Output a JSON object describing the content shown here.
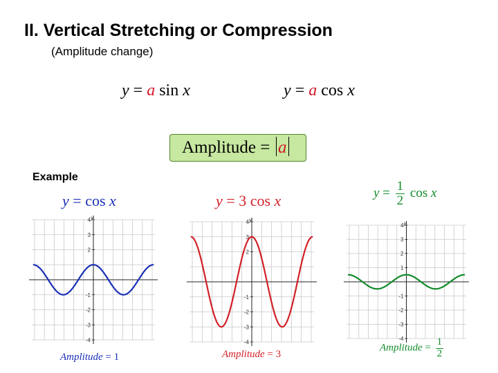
{
  "title": "II. Vertical Stretching or Compression",
  "subtitle": "(Amplitude change)",
  "formulas": {
    "sine": {
      "lhs": "y",
      "eq": "=",
      "a": "a",
      "fn": "sin",
      "x": "x"
    },
    "cosine": {
      "lhs": "y",
      "eq": "=",
      "a": "a",
      "fn": "cos",
      "x": "x"
    }
  },
  "amplitude_box": {
    "word": "Amplitude",
    "eq": "=",
    "a": "a"
  },
  "example_label": "Example",
  "colors": {
    "blue": "#1a2fb5",
    "red": "#d21f26",
    "green": "#128a2b",
    "grid": "#c8c8c8",
    "box_fill": "#c6e8a0"
  },
  "graphs": [
    {
      "title": {
        "lhs": "y",
        "eq": "=",
        "coef": "",
        "fn": "cos",
        "x": "x"
      },
      "amplitude": {
        "word": "Amplitude",
        "eq": "=",
        "value": "1"
      },
      "amp": 1,
      "color": "#1a2fb5",
      "axis_label": "y",
      "ticks": [
        "4",
        "3",
        "2",
        "-1",
        "-2",
        "-3",
        "-4"
      ]
    },
    {
      "title": {
        "lhs": "y",
        "eq": "=",
        "coef": "3",
        "fn": "cos",
        "x": "x"
      },
      "amplitude": {
        "word": "Amplitude",
        "eq": "=",
        "value": "3"
      },
      "amp": 3,
      "color": "#d21f26",
      "axis_label": "y",
      "ticks": [
        "4",
        "3",
        "2",
        "-1",
        "-2",
        "-3",
        "-4"
      ]
    },
    {
      "title": {
        "lhs": "y",
        "eq": "=",
        "num": "1",
        "den": "2",
        "fn": "cos",
        "x": "x"
      },
      "amplitude": {
        "word": "Amplitude",
        "eq": "=",
        "num": "1",
        "den": "2"
      },
      "amp": 0.5,
      "color": "#128a2b",
      "axis_label": "y",
      "ticks": [
        "4",
        "3",
        "2",
        "1",
        "-1",
        "-2",
        "-3",
        "-4"
      ]
    }
  ]
}
